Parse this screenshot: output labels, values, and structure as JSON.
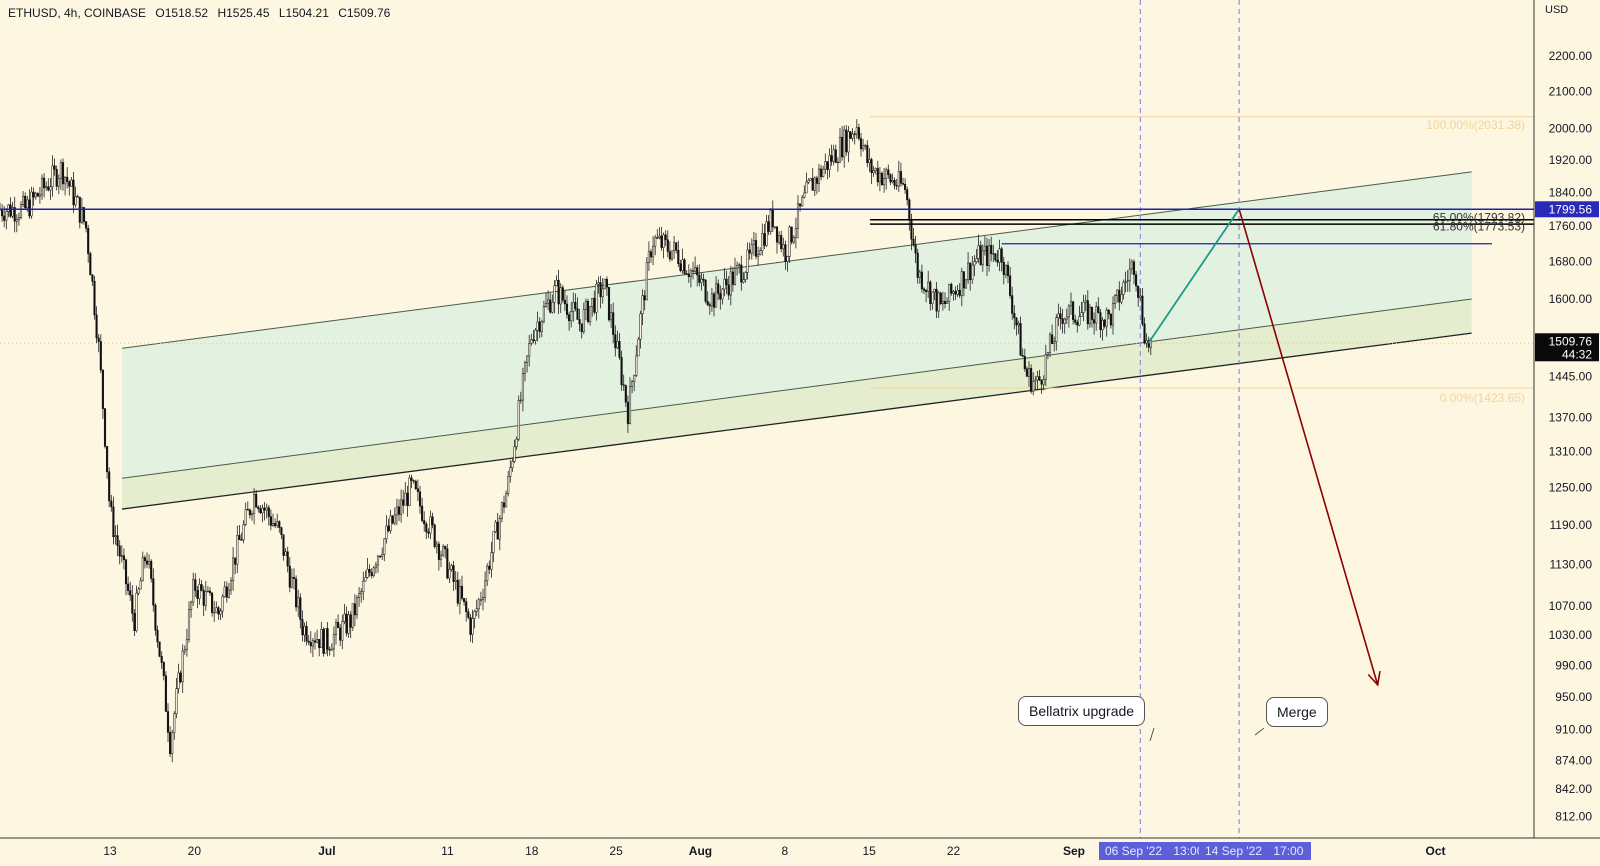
{
  "header": {
    "symbol": "ETHUSD, 4h, COINBASE",
    "open": "O1518.52",
    "high": "H1525.45",
    "low": "L1504.21",
    "close": "C1509.76"
  },
  "currency": "USD",
  "chart_data": {
    "type": "candlestick",
    "symbol": "ETHUSD",
    "timeframe": "4h",
    "exchange": "COINBASE",
    "y_scale": "log",
    "ylim": [
      790,
      2320
    ],
    "y_ticks": [
      "2200.00",
      "2100.00",
      "2000.00",
      "1920.00",
      "1840.00",
      "1760.00",
      "1680.00",
      "1600.00",
      "1445.00",
      "1370.00",
      "1310.00",
      "1250.00",
      "1190.00",
      "1130.00",
      "1070.00",
      "1030.00",
      "990.00",
      "950.00",
      "910.00",
      "874.00",
      "842.00",
      "812.00"
    ],
    "x_ticks": [
      "13",
      "20",
      "Jul",
      "11",
      "18",
      "25",
      "Aug",
      "8",
      "15",
      "22",
      "Sep",
      "Oct"
    ],
    "price_path": [
      [
        "2022-06-06",
        1800
      ],
      [
        "2022-06-09",
        1900
      ],
      [
        "2022-06-11",
        1760
      ],
      [
        "2022-06-12",
        1520
      ],
      [
        "2022-06-13",
        1210
      ],
      [
        "2022-06-15",
        1050
      ],
      [
        "2022-06-16",
        1150
      ],
      [
        "2022-06-18",
        895
      ],
      [
        "2022-06-20",
        1100
      ],
      [
        "2022-06-22",
        1060
      ],
      [
        "2022-06-25",
        1240
      ],
      [
        "2022-06-27",
        1180
      ],
      [
        "2022-06-29",
        1040
      ],
      [
        "2022-07-01",
        1020
      ],
      [
        "2022-07-03",
        1050
      ],
      [
        "2022-07-05",
        1140
      ],
      [
        "2022-07-08",
        1250
      ],
      [
        "2022-07-10",
        1170
      ],
      [
        "2022-07-13",
        1040
      ],
      [
        "2022-07-14",
        1100
      ],
      [
        "2022-07-16",
        1250
      ],
      [
        "2022-07-18",
        1530
      ],
      [
        "2022-07-20",
        1620
      ],
      [
        "2022-07-22",
        1550
      ],
      [
        "2022-07-24",
        1630
      ],
      [
        "2022-07-26",
        1380
      ],
      [
        "2022-07-28",
        1730
      ],
      [
        "2022-07-30",
        1700
      ],
      [
        "2022-08-02",
        1600
      ],
      [
        "2022-08-05",
        1680
      ],
      [
        "2022-08-07",
        1780
      ],
      [
        "2022-08-08",
        1700
      ],
      [
        "2022-08-10",
        1850
      ],
      [
        "2022-08-12",
        1930
      ],
      [
        "2022-08-14",
        2010
      ],
      [
        "2022-08-15",
        1900
      ],
      [
        "2022-08-18",
        1850
      ],
      [
        "2022-08-19",
        1660
      ],
      [
        "2022-08-21",
        1580
      ],
      [
        "2022-08-24",
        1690
      ],
      [
        "2022-08-26",
        1700
      ],
      [
        "2022-08-28",
        1450
      ],
      [
        "2022-08-29",
        1430
      ],
      [
        "2022-08-31",
        1570
      ],
      [
        "2022-09-02",
        1570
      ],
      [
        "2022-09-04",
        1560
      ],
      [
        "2022-09-06",
        1680
      ],
      [
        "2022-09-07",
        1509.76
      ]
    ],
    "current_price": {
      "price_label": "1509.76",
      "countdown": "44:32"
    },
    "horizontal_lines": [
      {
        "label": "1799.56",
        "price": 1799.56,
        "color": "#2020b0"
      },
      {
        "price": 1775,
        "color": "#000000"
      },
      {
        "price": 1765,
        "color": "#000000"
      },
      {
        "price": 1720,
        "color": "#2020b0"
      }
    ],
    "fibonacci": [
      {
        "label": "100.00%(2031.38)",
        "price": 2031.38
      },
      {
        "label": "65.00%(1793.82)",
        "price": 1793.82
      },
      {
        "label": "61.80%(1773.53)",
        "price": 1773.53
      },
      {
        "label": "0.00%(1423.65)",
        "price": 1423.65
      }
    ],
    "channel": {
      "upper_start": [
        "2022-06-14",
        1500
      ],
      "upper_end": [
        "2022-10-04",
        1890
      ],
      "middle_start": [
        "2022-06-14",
        1265
      ],
      "middle_end": [
        "2022-10-04",
        1600
      ],
      "lower_start": [
        "2022-06-14",
        1215
      ],
      "lower_end": [
        "2022-10-04",
        1530
      ]
    },
    "projection": {
      "up_to": [
        "2022-09-14",
        1800
      ],
      "down_to": [
        "2022-09-26",
        965
      ]
    },
    "events": [
      {
        "label": "Bellatrix upgrade",
        "date": "2022-09-06",
        "date_label": "06 Sep '22",
        "time_label": "13:00"
      },
      {
        "label": "Merge",
        "date": "2022-09-14",
        "date_label": "14 Sep '22",
        "time_label": "17:00"
      }
    ],
    "colors": {
      "background": "#fdf7e1",
      "channel_fill": "#dfefe0",
      "resistance": "#2020b0",
      "up_projection": "#1e9a8a",
      "down_projection": "#8b0000"
    }
  }
}
